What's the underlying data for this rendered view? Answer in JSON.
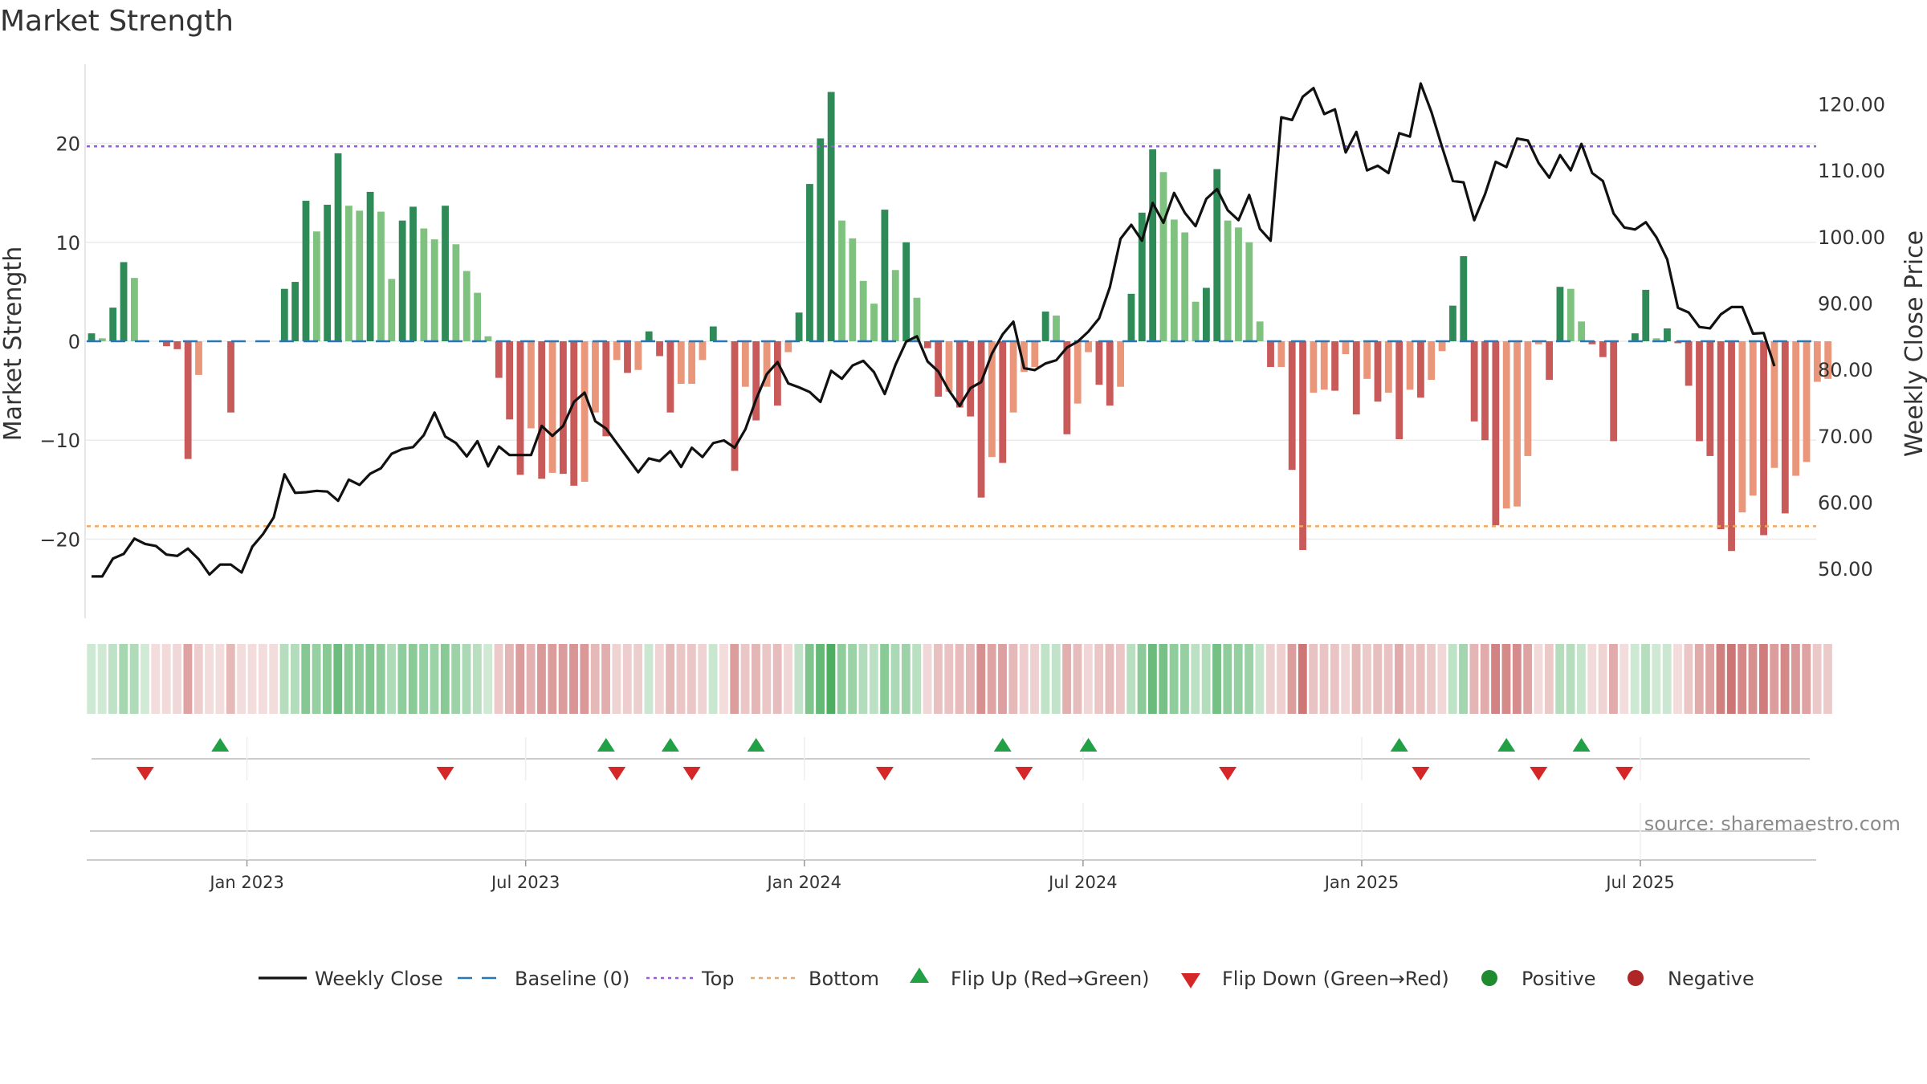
{
  "chart_data": {
    "type": "bar",
    "title": "Market Strength",
    "ylabel_left": "Market Strength",
    "ylabel_right": "Weekly Close Price",
    "source": "source: sharemaestro.com",
    "left_axis": {
      "range": [
        -28,
        28
      ],
      "ticks": [
        20,
        10,
        0,
        -10,
        -20
      ],
      "tick_labels": [
        "20",
        "10",
        "0",
        "−10",
        "−20"
      ]
    },
    "right_axis": {
      "range": [
        42.5,
        126
      ],
      "ticks": [
        120,
        110,
        100,
        90,
        80,
        70,
        60,
        50
      ],
      "tick_labels": [
        "120.00",
        "110.00",
        "100.00",
        "90.00",
        "80.00",
        "70.00",
        "60.00",
        "50.00"
      ]
    },
    "x_tick_labels": [
      "Jan 2023",
      "Jul 2023",
      "Jan 2024",
      "Jul 2024",
      "Jan 2025",
      "Jul 2025"
    ],
    "x_tick_weeks": [
      14.5,
      40.5,
      66.5,
      92.5,
      118.5,
      144.5
    ],
    "top_level": 19.7,
    "bottom_level": -18.7,
    "strength": [
      0.8,
      0.3,
      3.4,
      8,
      6.4,
      0.1,
      0,
      -0.5,
      -0.8,
      -11.9,
      -3.4,
      0,
      0,
      -7.2,
      0,
      0,
      0,
      0,
      5.3,
      6,
      14.2,
      11.1,
      13.8,
      19,
      13.7,
      13.2,
      15.1,
      13.1,
      6.3,
      12.2,
      13.6,
      11.4,
      10.3,
      13.7,
      9.8,
      7.1,
      4.9,
      0.5,
      -3.7,
      -7.9,
      -13.5,
      -8.8,
      -13.9,
      -13.3,
      -13.4,
      -14.6,
      -14.2,
      -7.2,
      -9.6,
      -1.9,
      -3.2,
      -2.9,
      1,
      -1.5,
      -7.2,
      -4.3,
      -4.3,
      -1.9,
      1.5,
      0,
      -13.1,
      -4.6,
      -8,
      -4.6,
      -6.5,
      -1.1,
      2.9,
      15.9,
      20.5,
      25.2,
      12.2,
      10.4,
      6.1,
      3.8,
      13.3,
      7.2,
      10,
      4.4,
      -0.7,
      -5.6,
      -5.1,
      -6.7,
      -7.6,
      -15.8,
      -11.7,
      -12.3,
      -7.2,
      -3.1,
      -2.6,
      3,
      2.6,
      -9.4,
      -6.3,
      -1.1,
      -4.4,
      -6.5,
      -4.6,
      4.8,
      13,
      19.4,
      17.1,
      12.3,
      11,
      4,
      5.4,
      17.4,
      12.2,
      11.5,
      10,
      2,
      -2.6,
      -2.6,
      -13,
      -21.1,
      -5.2,
      -4.9,
      -5,
      -1.3,
      -7.4,
      -3.8,
      -6.1,
      -5.2,
      -9.9,
      -4.9,
      -5.7,
      -3.9,
      -1,
      3.6,
      8.6,
      -8.1,
      -10,
      -18.6,
      -16.9,
      -16.7,
      -11.6,
      -0.3,
      -3.9,
      5.5,
      5.3,
      2,
      -0.3,
      -1.6,
      -10.1,
      0,
      0.8,
      5.2,
      0.3,
      1.3,
      -0.2,
      -4.5,
      -10.1,
      -11.6,
      -19,
      -21.2,
      -17.3,
      -15.6,
      -19.6,
      -12.8,
      -17.4,
      -13.6,
      -12.2,
      -4.1,
      -3.8
    ],
    "close": [
      48.8,
      48.8,
      51.5,
      52.2,
      54.5,
      53.7,
      53.4,
      52.1,
      51.9,
      53,
      51.4,
      49.1,
      50.6,
      50.6,
      49.4,
      53.3,
      55.2,
      57.7,
      64.2,
      61.4,
      61.5,
      61.7,
      61.6,
      60.2,
      63.4,
      62.6,
      64.3,
      65.1,
      67.3,
      68,
      68.3,
      70.1,
      73.5,
      69.9,
      68.9,
      66.9,
      69.2,
      65.4,
      68.4,
      67.1,
      67.1,
      67.1,
      71.5,
      70,
      71.5,
      75.1,
      76.5,
      72.2,
      71.1,
      68.9,
      66.7,
      64.5,
      66.6,
      66.2,
      67.7,
      65.3,
      68.2,
      66.8,
      68.9,
      69.3,
      68.2,
      71,
      75.5,
      79.3,
      81.1,
      77.9,
      77.3,
      76.6,
      75.1,
      79.8,
      78.6,
      80.6,
      81.3,
      79.6,
      76.3,
      80.7,
      84.2,
      85,
      81.2,
      79.7,
      76.8,
      74.5,
      77.2,
      78.1,
      82.4,
      85.3,
      87.2,
      80.2,
      79.9,
      80.9,
      81.4,
      83.3,
      84.2,
      85.7,
      87.7,
      92.4,
      99.7,
      101.8,
      99.4,
      105.1,
      102.1,
      106.6,
      103.6,
      101.6,
      105.7,
      107.2,
      104,
      102.5,
      106.3,
      101.2,
      99.4,
      118,
      117.6,
      121.1,
      122.4,
      118.5,
      119.2,
      112.7,
      115.8,
      110,
      110.7,
      109.6,
      115.6,
      115.1,
      123.1,
      118.8,
      113.5,
      108.4,
      108.2,
      102.5,
      106.4,
      111.3,
      110.5,
      114.8,
      114.5,
      111.1,
      108.9,
      112.3,
      110,
      114,
      109.6,
      108.4,
      103.5,
      101.4,
      101.1,
      102.2,
      99.9,
      96.6,
      89.3,
      88.6,
      86.4,
      86.2,
      88.3,
      89.4,
      89.4,
      85.4,
      85.5,
      80.5
    ],
    "flip_up_weeks": [
      12,
      48,
      54,
      62,
      85,
      93,
      122,
      132,
      139
    ],
    "flip_down_weeks": [
      5,
      33,
      49,
      56,
      74,
      87,
      106,
      124,
      135,
      143
    ],
    "legend": [
      {
        "label": "Weekly Close",
        "marker": "solid-line"
      },
      {
        "label": "Baseline (0)",
        "marker": "dash-line"
      },
      {
        "label": "Top",
        "marker": "dot-line-purple"
      },
      {
        "label": "Bottom",
        "marker": "dot-line-orange"
      },
      {
        "label": "Flip Up (Red→Green)",
        "marker": "triangle-up"
      },
      {
        "label": "Flip Down (Green→Red)",
        "marker": "triangle-down"
      },
      {
        "label": "Positive",
        "marker": "circle-green"
      },
      {
        "label": "Negative",
        "marker": "circle-red"
      }
    ],
    "colors": {
      "pos_strong": "#2e8b57",
      "pos_weak": "#7fc27f",
      "neg_strong": "#c85a5a",
      "neg_weak": "#e9967a",
      "close_line": "#111111",
      "baseline": "#2878b5",
      "top_line": "#9b59e0",
      "bottom_line": "#f0a860",
      "flip_up": "#22a045",
      "flip_down": "#d62728",
      "legend_pos": "#1f8a2e",
      "legend_neg": "#b02525"
    }
  }
}
